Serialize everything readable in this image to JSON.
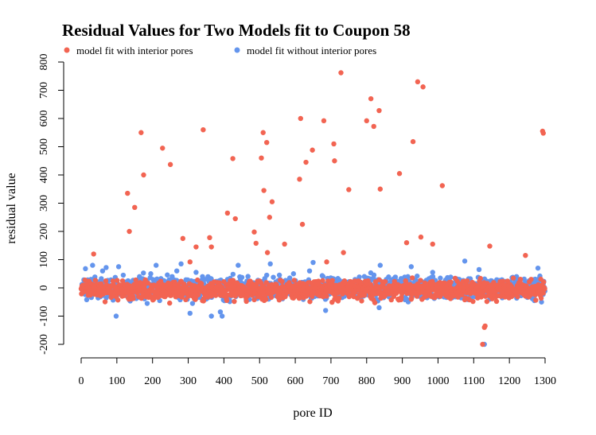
{
  "chart_data": {
    "type": "scatter",
    "title": "Residual Values for Two Models fit to Coupon 58",
    "xlabel": "pore ID",
    "ylabel": "residual value",
    "xlim": [
      0,
      1300
    ],
    "ylim": [
      -200,
      800
    ],
    "x_ticks": [
      "0",
      "100",
      "200",
      "300",
      "400",
      "500",
      "600",
      "700",
      "800",
      "900",
      "1000",
      "1100",
      "1200",
      "1300"
    ],
    "y_ticks": [
      "-200",
      "-100",
      "0",
      "100",
      "200",
      "300",
      "400",
      "500",
      "600",
      "700",
      "800"
    ],
    "legend_position": "top-left",
    "grid": false,
    "series": [
      {
        "name": "model fit with interior pores",
        "color": "#f26452",
        "points": [
          [
            35,
            120
          ],
          [
            130,
            335
          ],
          [
            135,
            200
          ],
          [
            150,
            285
          ],
          [
            168,
            550
          ],
          [
            175,
            400
          ],
          [
            228,
            495
          ],
          [
            250,
            437
          ],
          [
            285,
            175
          ],
          [
            305,
            92
          ],
          [
            322,
            145
          ],
          [
            342,
            560
          ],
          [
            360,
            178
          ],
          [
            365,
            145
          ],
          [
            410,
            265
          ],
          [
            425,
            458
          ],
          [
            432,
            245
          ],
          [
            485,
            198
          ],
          [
            490,
            158
          ],
          [
            505,
            460
          ],
          [
            510,
            550
          ],
          [
            512,
            345
          ],
          [
            520,
            515
          ],
          [
            522,
            125
          ],
          [
            528,
            250
          ],
          [
            535,
            305
          ],
          [
            570,
            155
          ],
          [
            612,
            385
          ],
          [
            615,
            600
          ],
          [
            620,
            225
          ],
          [
            630,
            445
          ],
          [
            648,
            488
          ],
          [
            680,
            592
          ],
          [
            688,
            92
          ],
          [
            708,
            510
          ],
          [
            710,
            450
          ],
          [
            728,
            762
          ],
          [
            735,
            125
          ],
          [
            750,
            348
          ],
          [
            800,
            592
          ],
          [
            812,
            670
          ],
          [
            820,
            572
          ],
          [
            835,
            628
          ],
          [
            838,
            350
          ],
          [
            892,
            405
          ],
          [
            912,
            160
          ],
          [
            930,
            518
          ],
          [
            943,
            730
          ],
          [
            952,
            180
          ],
          [
            958,
            712
          ],
          [
            985,
            155
          ],
          [
            1012,
            362
          ],
          [
            1145,
            148
          ],
          [
            1245,
            115
          ],
          [
            1293,
            555
          ],
          [
            1295,
            548
          ],
          [
            1125,
            -200
          ],
          [
            1130,
            -140
          ],
          [
            1132,
            -135
          ]
        ]
      },
      {
        "name": "model fit without interior pores",
        "color": "#6495ed",
        "points": [
          [
            8,
            15
          ],
          [
            12,
            68
          ],
          [
            20,
            -10
          ],
          [
            32,
            80
          ],
          [
            45,
            -15
          ],
          [
            60,
            60
          ],
          [
            70,
            72
          ],
          [
            88,
            -5
          ],
          [
            98,
            -100
          ],
          [
            105,
            75
          ],
          [
            118,
            45
          ],
          [
            145,
            -20
          ],
          [
            160,
            30
          ],
          [
            170,
            -25
          ],
          [
            185,
            -55
          ],
          [
            195,
            50
          ],
          [
            210,
            80
          ],
          [
            220,
            -45
          ],
          [
            240,
            10
          ],
          [
            255,
            40
          ],
          [
            268,
            60
          ],
          [
            280,
            85
          ],
          [
            295,
            -15
          ],
          [
            305,
            -90
          ],
          [
            312,
            -55
          ],
          [
            322,
            55
          ],
          [
            340,
            40
          ],
          [
            355,
            -35
          ],
          [
            365,
            -100
          ],
          [
            380,
            -10
          ],
          [
            390,
            -85
          ],
          [
            395,
            -100
          ],
          [
            410,
            30
          ],
          [
            440,
            80
          ],
          [
            455,
            -20
          ],
          [
            470,
            15
          ],
          [
            485,
            -30
          ],
          [
            500,
            20
          ],
          [
            520,
            45
          ],
          [
            530,
            85
          ],
          [
            545,
            -10
          ],
          [
            560,
            25
          ],
          [
            580,
            -20
          ],
          [
            595,
            50
          ],
          [
            610,
            -5
          ],
          [
            625,
            20
          ],
          [
            640,
            60
          ],
          [
            650,
            90
          ],
          [
            665,
            15
          ],
          [
            685,
            -80
          ],
          [
            700,
            30
          ],
          [
            720,
            -10
          ],
          [
            740,
            20
          ],
          [
            760,
            -15
          ],
          [
            780,
            10
          ],
          [
            800,
            35
          ],
          [
            815,
            -20
          ],
          [
            835,
            -70
          ],
          [
            838,
            80
          ],
          [
            855,
            30
          ],
          [
            875,
            -10
          ],
          [
            900,
            20
          ],
          [
            925,
            75
          ],
          [
            950,
            -15
          ],
          [
            965,
            20
          ],
          [
            985,
            55
          ],
          [
            1000,
            -25
          ],
          [
            1020,
            10
          ],
          [
            1040,
            -20
          ],
          [
            1060,
            15
          ],
          [
            1075,
            95
          ],
          [
            1090,
            -30
          ],
          [
            1115,
            65
          ],
          [
            1130,
            -200
          ],
          [
            1145,
            -40
          ],
          [
            1160,
            10
          ],
          [
            1180,
            -35
          ],
          [
            1200,
            20
          ],
          [
            1220,
            40
          ],
          [
            1240,
            -25
          ],
          [
            1255,
            25
          ],
          [
            1270,
            -45
          ],
          [
            1280,
            70
          ],
          [
            1290,
            -50
          ],
          [
            1295,
            15
          ]
        ]
      }
    ]
  }
}
